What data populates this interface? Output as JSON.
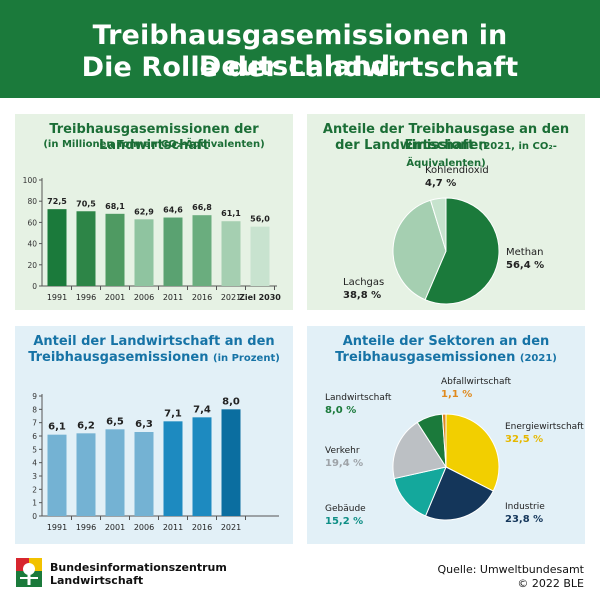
{
  "header": {
    "title_line1": "Treibhausgasemissionen in Deutschland:",
    "title_line2": "Die Rolle der Landwirtschaft"
  },
  "panels": {
    "ag_emissions": {
      "title": "Treibhausgasemissionen der Landwirtschaft",
      "subtitle": "(in Millionen Tonnen CO₂-Äquivalenten)"
    },
    "gas_shares": {
      "title_line1": "Anteile der Treibhausgase an den Emissionen",
      "title_line2": "der Landwirtschaft",
      "subtitle": "(2021, in CO₂-Äquivalenten)"
    },
    "ag_share": {
      "title_line1": "Anteil der Landwirtschaft an den",
      "title_line2": "Treibhausgasemissionen",
      "subtitle": "(in Prozent)"
    },
    "sectors": {
      "title_line1": "Anteile der Sektoren an den",
      "title_line2": "Treibhausgasemissionen",
      "subtitle": "(2021)"
    }
  },
  "footer": {
    "org_line1": "Bundesinformationszentrum",
    "org_line2": "Landwirtschaft",
    "source_line1": "Quelle: Umweltbundesamt",
    "source_line2": "© 2022 BLE"
  },
  "chart_data": [
    {
      "type": "bar",
      "categories": [
        "1991",
        "1996",
        "2001",
        "2006",
        "2011",
        "2016",
        "2021",
        "Ziel 2030"
      ],
      "values": [
        72.5,
        70.5,
        68.1,
        62.9,
        64.6,
        66.8,
        61.1,
        56.0
      ],
      "value_labels": [
        "72,5",
        "70,5",
        "68,1",
        "62,9",
        "64,6",
        "66,8",
        "61,1",
        "56,0"
      ],
      "colors": [
        "#1b7a3b",
        "#2d8547",
        "#4f9a62",
        "#8fc4a0",
        "#5aa271",
        "#6aad7e",
        "#a5cfb1",
        "#c8e3cf"
      ],
      "yticks": [
        0,
        20,
        40,
        60,
        80,
        100
      ],
      "ylim": [
        0,
        100
      ]
    },
    {
      "type": "pie",
      "labels": [
        "Methan",
        "Lachgas",
        "Kohlendioxid"
      ],
      "values": [
        56.4,
        38.8,
        4.7
      ],
      "value_labels": [
        "56,4 %",
        "38,8 %",
        "4,7 %"
      ],
      "colors": [
        "#1b7a3b",
        "#a5cfb1",
        "#c6e3cd"
      ]
    },
    {
      "type": "bar",
      "categories": [
        "1991",
        "1996",
        "2001",
        "2006",
        "2011",
        "2016",
        "2021"
      ],
      "values": [
        6.1,
        6.2,
        6.5,
        6.3,
        7.1,
        7.4,
        8.0
      ],
      "value_labels": [
        "6,1",
        "6,2",
        "6,5",
        "6,3",
        "7,1",
        "7,4",
        "8,0"
      ],
      "colors": [
        "#74b2d3",
        "#74b2d3",
        "#74b2d3",
        "#74b2d3",
        "#1d8ac0",
        "#1d8ac0",
        "#0b6ea0"
      ],
      "yticks": [
        0,
        1,
        2,
        3,
        4,
        5,
        6,
        7,
        8,
        9
      ],
      "ylim": [
        0,
        9
      ]
    },
    {
      "type": "pie",
      "labels": [
        "Energiewirtschaft",
        "Industrie",
        "Gebäude",
        "Verkehr",
        "Landwirtschaft",
        "Abfallwirtschaft"
      ],
      "values": [
        32.5,
        23.8,
        15.2,
        19.4,
        8.0,
        1.1
      ],
      "value_labels": [
        "32,5 %",
        "23,8 %",
        "15,2 %",
        "19,4 %",
        "8,0 %",
        "1,1 %"
      ],
      "colors": [
        "#f2cf00",
        "#14365a",
        "#14a89c",
        "#bcc0c4",
        "#1b7a3b",
        "#e08a1e"
      ],
      "label_colors": [
        "#e6b800",
        "#14365a",
        "#0f8f86",
        "#9ea3a8",
        "#1b7a3b",
        "#e08a1e"
      ]
    }
  ]
}
